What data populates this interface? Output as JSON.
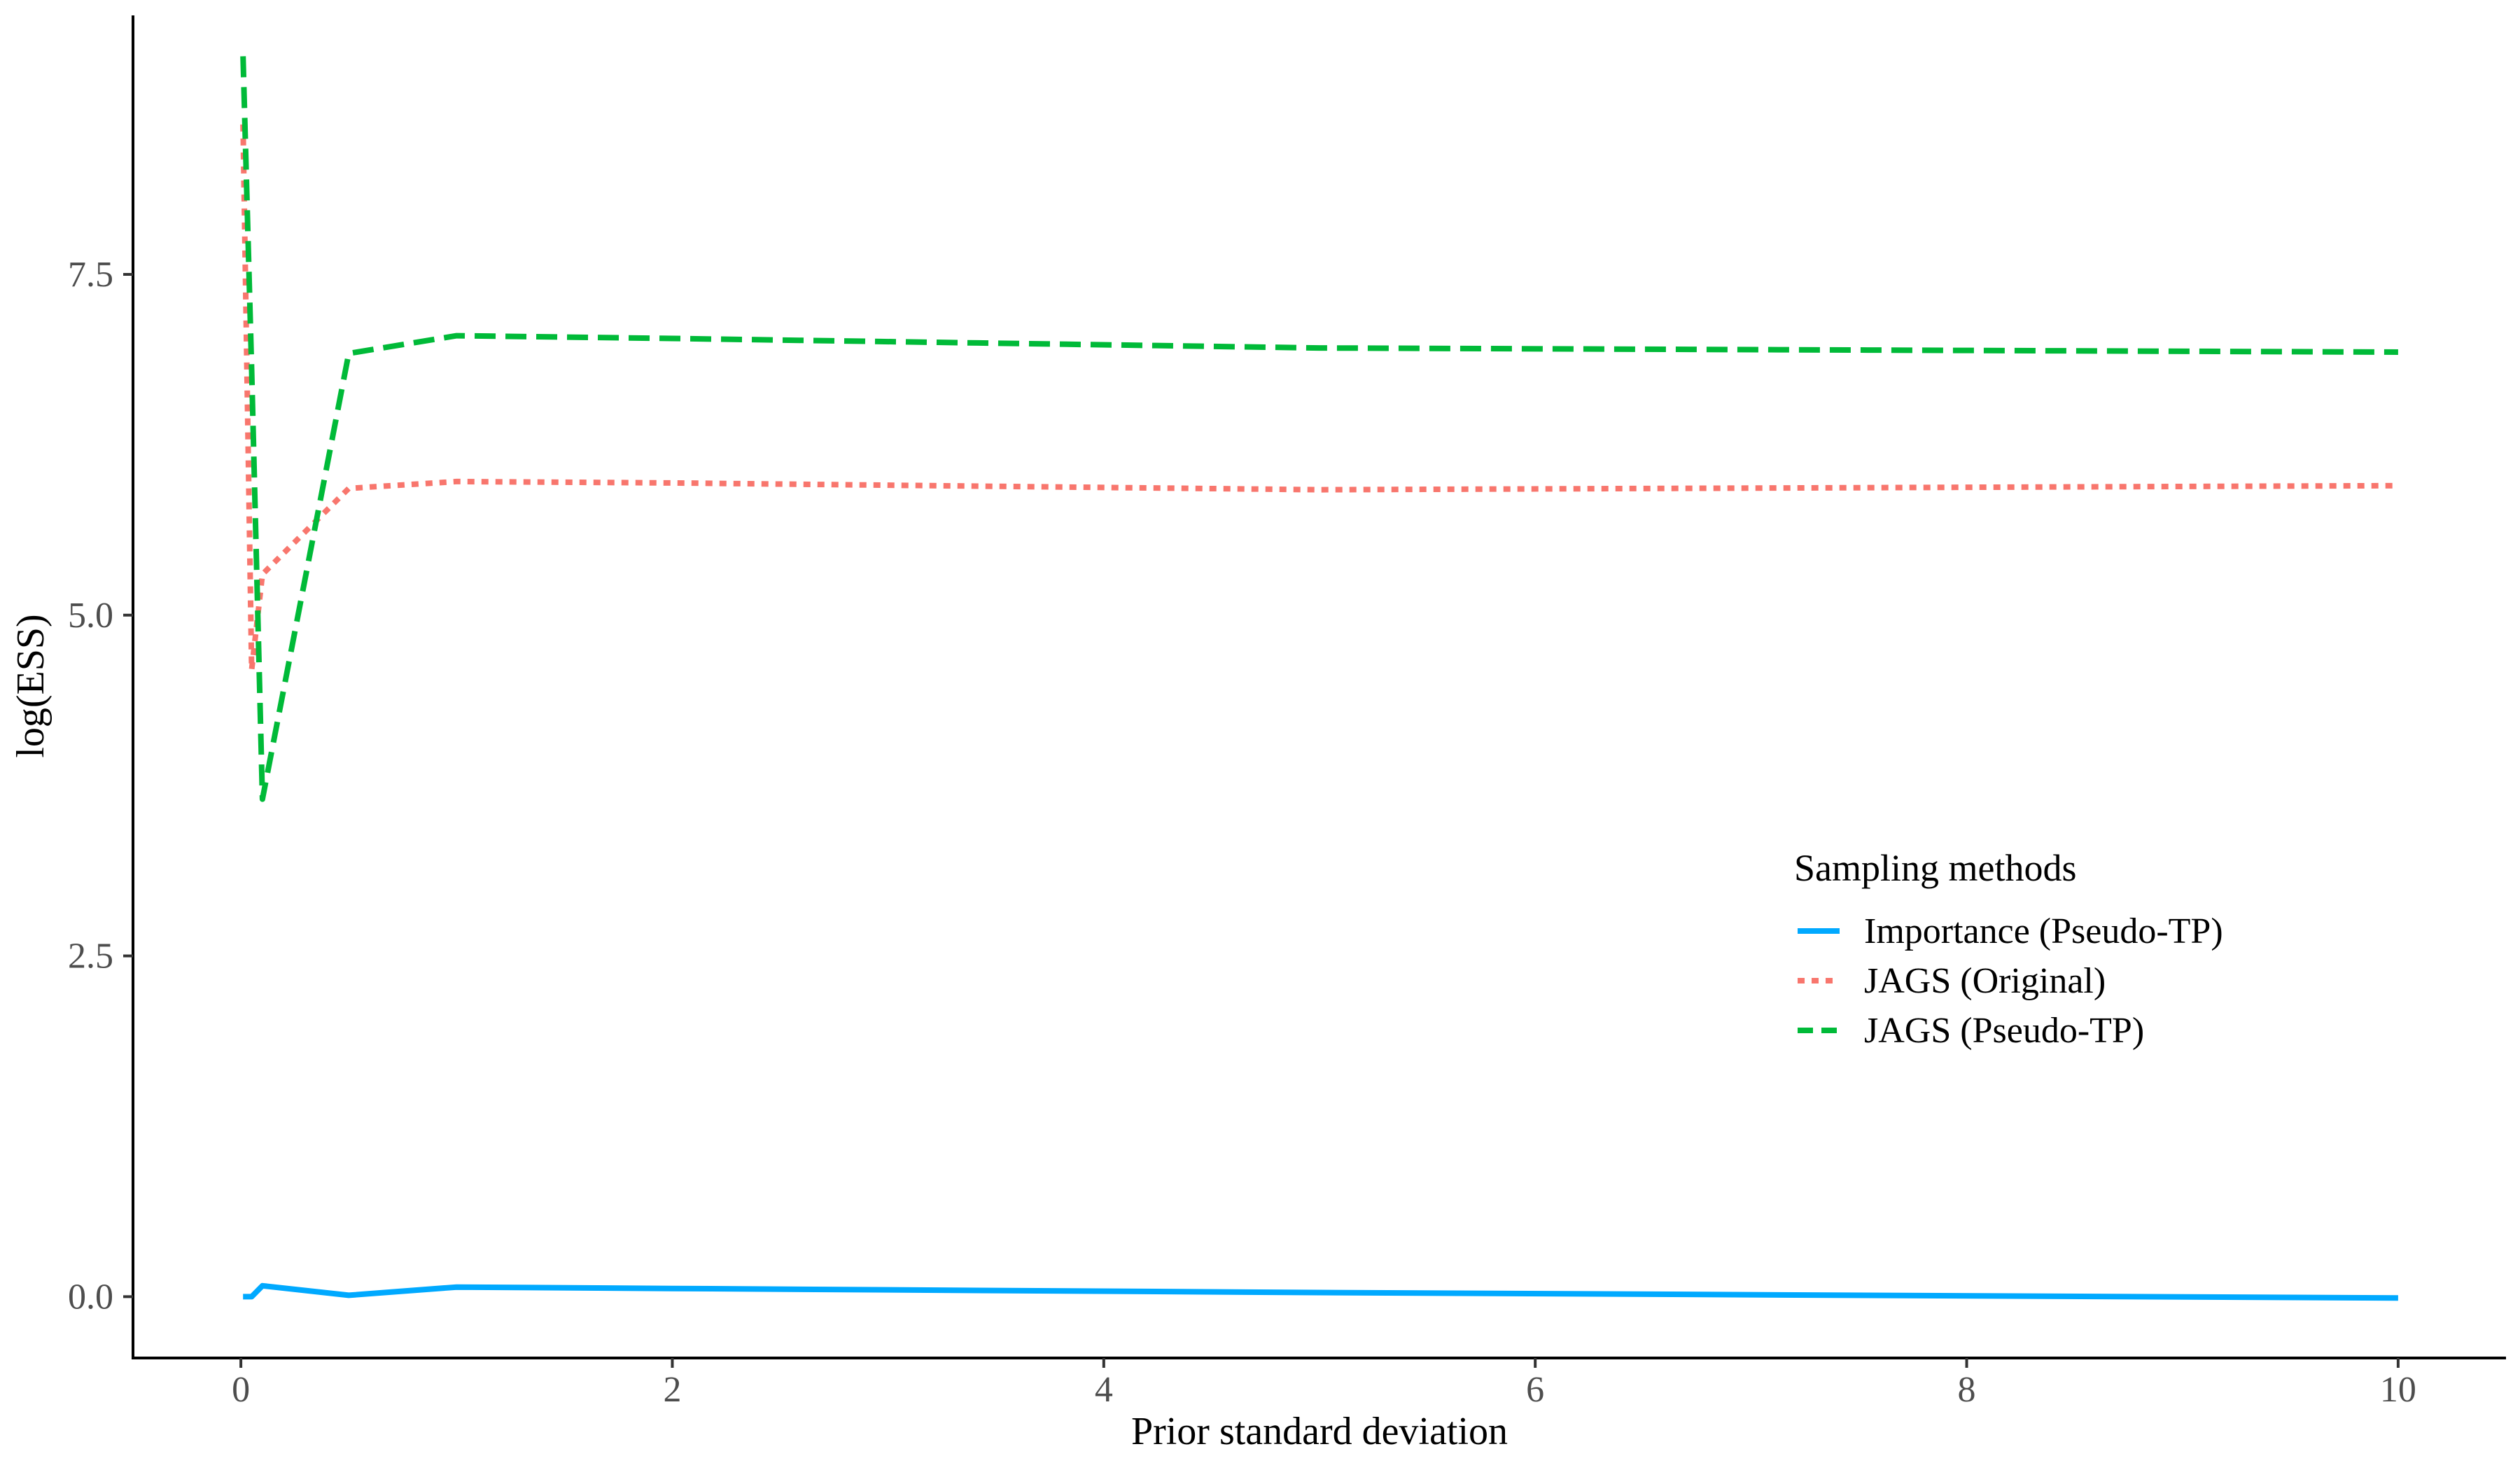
{
  "chart_data": {
    "type": "line",
    "title": "",
    "xlabel": "Prior standard deviation",
    "ylabel": "log(ESS)",
    "xlim": [
      -0.5,
      10.5
    ],
    "ylim": [
      -0.45,
      9.4
    ],
    "xticks": [
      {
        "value": 0,
        "label": "0"
      },
      {
        "value": 2,
        "label": "2"
      },
      {
        "value": 4,
        "label": "4"
      },
      {
        "value": 6,
        "label": "6"
      },
      {
        "value": 8,
        "label": "8"
      },
      {
        "value": 10,
        "label": "10"
      }
    ],
    "yticks": [
      {
        "value": 0.0,
        "label": "0.0"
      },
      {
        "value": 2.5,
        "label": "2.5"
      },
      {
        "value": 5.0,
        "label": "5.0"
      },
      {
        "value": 7.5,
        "label": "7.5"
      }
    ],
    "grid": false,
    "legend": {
      "title": "Sampling methods",
      "position": "right, vertically centered"
    },
    "series": [
      {
        "name": "Importance (Pseudo-TP)",
        "color": "#00A9FF",
        "dash": "solid",
        "x": [
          0.01,
          0.05,
          0.1,
          0.5,
          1,
          2,
          5,
          10
        ],
        "y": [
          0.0,
          0.0,
          0.08,
          0.01,
          0.07,
          0.06,
          0.03,
          -0.01
        ]
      },
      {
        "name": "JAGS (Original)",
        "color": "#F8766D",
        "dash": "dotted",
        "x": [
          0.01,
          0.05,
          0.1,
          0.5,
          1,
          2,
          5,
          10
        ],
        "y": [
          8.6,
          4.6,
          5.3,
          5.93,
          5.98,
          5.97,
          5.92,
          5.95
        ]
      },
      {
        "name": "JAGS (Pseudo-TP)",
        "color": "#00BA38",
        "dash": "dashed",
        "x": [
          0.01,
          0.05,
          0.1,
          0.5,
          1,
          2,
          5,
          10
        ],
        "y": [
          9.1,
          6.8,
          3.65,
          6.92,
          7.05,
          7.03,
          6.96,
          6.93
        ]
      }
    ]
  }
}
